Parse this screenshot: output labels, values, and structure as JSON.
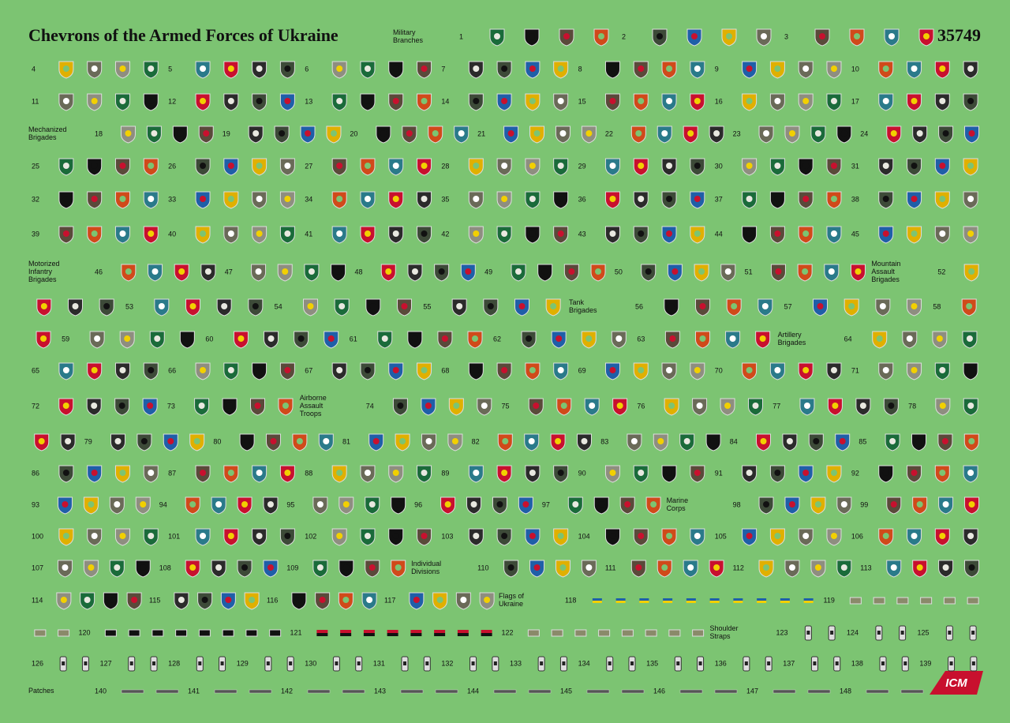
{
  "title": "Chevrons of the Armed Forces of Ukraine",
  "code": "35749",
  "logo": "ICM",
  "labels": [
    {
      "lines": [
        "Military",
        "Branches"
      ]
    },
    {
      "lines": [
        "Mechanized",
        "Brigades"
      ]
    },
    {
      "lines": [
        "Motorized",
        "Infantry",
        "Brigades"
      ]
    },
    {
      "lines": [
        "Mountain",
        "Assault",
        "Brigades"
      ]
    },
    {
      "lines": [
        "Tank",
        "Brigades"
      ]
    },
    {
      "lines": [
        "Artillery",
        "Brigades"
      ]
    },
    {
      "lines": [
        "Airborne",
        "Assault",
        "Troops"
      ]
    },
    {
      "lines": [
        "Marine",
        "Corps"
      ]
    },
    {
      "lines": [
        "Individual",
        "Divisions"
      ]
    },
    {
      "lines": [
        "Flags of",
        "Ukraine"
      ]
    },
    {
      "lines": [
        "Shoulder",
        "Straps"
      ]
    },
    {
      "lines": [
        "Patches"
      ]
    }
  ],
  "numbers": [
    1,
    2,
    3,
    4,
    5,
    6,
    7,
    8,
    9,
    10,
    11,
    12,
    13,
    14,
    15,
    16,
    17,
    18,
    19,
    20,
    21,
    22,
    23,
    24,
    25,
    26,
    27,
    28,
    29,
    30,
    31,
    32,
    33,
    34,
    35,
    36,
    37,
    38,
    39,
    40,
    41,
    42,
    43,
    44,
    45,
    46,
    47,
    48,
    49,
    50,
    51,
    52,
    53,
    54,
    55,
    56,
    57,
    58,
    59,
    60,
    61,
    62,
    63,
    64,
    65,
    66,
    67,
    68,
    69,
    70,
    71,
    72,
    73,
    74,
    75,
    76,
    77,
    78,
    79,
    80,
    81,
    82,
    83,
    84,
    85,
    86,
    87,
    88,
    89,
    90,
    91,
    92,
    93,
    94,
    95,
    96,
    97,
    98,
    99,
    100,
    101,
    102,
    103,
    104,
    105,
    106,
    107,
    108,
    109,
    110,
    111,
    112,
    113,
    114,
    115,
    116,
    117,
    118,
    119,
    120,
    121,
    122,
    123,
    124,
    125,
    126,
    127,
    128,
    129,
    130,
    131,
    132,
    133,
    134,
    135,
    136,
    137,
    138,
    139,
    140,
    141,
    142,
    143,
    144,
    145,
    146,
    147,
    148
  ]
}
